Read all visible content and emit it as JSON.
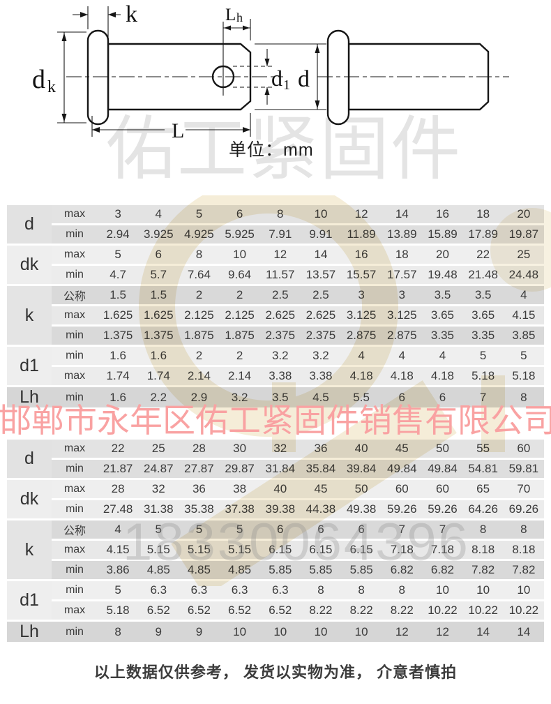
{
  "drawing": {
    "unit_label": "单位：mm",
    "labels": {
      "k": "k",
      "L": "L",
      "d": "d",
      "dk": [
        "d",
        "k"
      ],
      "d1": [
        "d",
        "1"
      ],
      "lh": [
        "L",
        "h"
      ]
    }
  },
  "watermarks": {
    "brand": "佑工紧固件",
    "company": "邯郸市永年区佑工紧固件销售有限公司",
    "phone": "18330064396",
    "brand_color": "#e4e4e4",
    "company_color": "#f9a2a2",
    "phone_color": "#8c8c8c",
    "logo_color": "#e8d7a8"
  },
  "table_style": {
    "row_shades": [
      "#e3e3e3",
      "#dedede",
      "#efefef",
      "#ececec",
      "#d9d9d9",
      "#e8e8e8",
      "#d9d9d9",
      "#efefef",
      "#ececec",
      "#d6d6d6"
    ]
  },
  "tables": [
    {
      "rows": [
        {
          "group": "d",
          "span": 2,
          "group_shade": "#e2e2e2",
          "sub": "max",
          "values": [
            "3",
            "4",
            "5",
            "6",
            "8",
            "10",
            "12",
            "14",
            "16",
            "18",
            "20"
          ]
        },
        {
          "sub": "min",
          "values": [
            "2.94",
            "3.925",
            "4.925",
            "5.925",
            "7.91",
            "9.91",
            "11.89",
            "13.89",
            "15.89",
            "17.89",
            "19.87"
          ]
        },
        {
          "group": "dk",
          "span": 2,
          "group_shade": "#eeeeee",
          "sub": "max",
          "values": [
            "5",
            "6",
            "8",
            "10",
            "12",
            "14",
            "16",
            "18",
            "20",
            "22",
            "25"
          ]
        },
        {
          "sub": "min",
          "values": [
            "4.7",
            "5.7",
            "7.64",
            "9.64",
            "11.57",
            "13.57",
            "15.57",
            "17.57",
            "19.48",
            "21.48",
            "24.48"
          ]
        },
        {
          "group": "k",
          "span": 3,
          "group_shade": "#e4e4e4",
          "sub": "公称",
          "values": [
            "1.5",
            "1.5",
            "2",
            "2",
            "2.5",
            "2.5",
            "3",
            "3",
            "3.5",
            "3.5",
            "4"
          ]
        },
        {
          "sub": "max",
          "values": [
            "1.625",
            "1.625",
            "2.125",
            "2.125",
            "2.625",
            "2.625",
            "3.125",
            "3.125",
            "3.65",
            "3.65",
            "4.15"
          ]
        },
        {
          "sub": "min",
          "values": [
            "1.375",
            "1.375",
            "1.875",
            "1.875",
            "2.375",
            "2.375",
            "2.875",
            "2.875",
            "3.35",
            "3.35",
            "3.85"
          ]
        },
        {
          "group": "d1",
          "span": 2,
          "group_shade": "#eeeeee",
          "sub": "min",
          "values": [
            "1.6",
            "1.6",
            "2",
            "2",
            "3.2",
            "3.2",
            "4",
            "4",
            "4",
            "5",
            "5"
          ]
        },
        {
          "sub": "max",
          "values": [
            "1.74",
            "1.74",
            "2.14",
            "2.14",
            "3.38",
            "3.38",
            "4.18",
            "4.18",
            "4.18",
            "5.18",
            "5.18"
          ]
        },
        {
          "group": "Lh",
          "span": 1,
          "group_shade": "#d6d6d6",
          "sub": "min",
          "values": [
            "1.6",
            "2.2",
            "2.9",
            "3.2",
            "3.5",
            "4.5",
            "5.5",
            "6",
            "6",
            "7",
            "8"
          ]
        }
      ]
    },
    {
      "rows": [
        {
          "group": "d",
          "span": 2,
          "group_shade": "#e2e2e2",
          "sub": "max",
          "values": [
            "22",
            "25",
            "28",
            "30",
            "32",
            "36",
            "40",
            "45",
            "50",
            "55",
            "60"
          ]
        },
        {
          "sub": "min",
          "values": [
            "21.87",
            "24.87",
            "27.87",
            "29.87",
            "31.84",
            "35.84",
            "39.84",
            "49.84",
            "49.84",
            "54.81",
            "59.81"
          ]
        },
        {
          "group": "dk",
          "span": 2,
          "group_shade": "#eeeeee",
          "sub": "max",
          "values": [
            "28",
            "32",
            "36",
            "38",
            "40",
            "45",
            "50",
            "60",
            "60",
            "65",
            "70"
          ]
        },
        {
          "sub": "min",
          "values": [
            "27.48",
            "31.38",
            "35.38",
            "37.38",
            "39.38",
            "44.38",
            "49.38",
            "59.26",
            "59.26",
            "64.26",
            "69.26"
          ]
        },
        {
          "group": "k",
          "span": 3,
          "group_shade": "#e4e4e4",
          "sub": "公称",
          "values": [
            "4",
            "5",
            "5",
            "5",
            "6",
            "6",
            "6",
            "7",
            "7",
            "8",
            "8"
          ]
        },
        {
          "sub": "max",
          "values": [
            "4.15",
            "5.15",
            "5.15",
            "5.15",
            "6.15",
            "6.15",
            "6.15",
            "7.18",
            "7.18",
            "8.18",
            "8.18"
          ]
        },
        {
          "sub": "min",
          "values": [
            "3.86",
            "4.85",
            "4.85",
            "4.85",
            "5.85",
            "5.85",
            "5.85",
            "6.82",
            "6.82",
            "7.82",
            "7.82"
          ]
        },
        {
          "group": "d1",
          "span": 2,
          "group_shade": "#eeeeee",
          "sub": "min",
          "values": [
            "5",
            "6.3",
            "6.3",
            "6.3",
            "6.3",
            "8",
            "8",
            "8",
            "10",
            "10",
            "10"
          ]
        },
        {
          "sub": "max",
          "values": [
            "5.18",
            "6.52",
            "6.52",
            "6.52",
            "6.52",
            "8.22",
            "8.22",
            "8.22",
            "10.22",
            "10.22",
            "10.22"
          ]
        },
        {
          "group": "Lh",
          "span": 1,
          "group_shade": "#d6d6d6",
          "sub": "min",
          "values": [
            "8",
            "9",
            "9",
            "10",
            "10",
            "10",
            "10",
            "12",
            "12",
            "14",
            "14"
          ]
        }
      ]
    }
  ],
  "footer": {
    "note": "以上数据仅供参考， 发货以实物为准， 介意者慎拍"
  }
}
